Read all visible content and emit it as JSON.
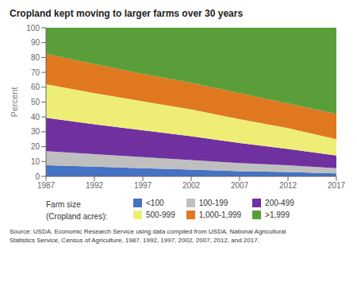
{
  "chart_data": {
    "type": "area",
    "title": "Cropland kept moving to larger farms over 30 years",
    "ylabel": "Percent",
    "x": [
      1987,
      1992,
      1997,
      2002,
      2007,
      2012,
      2017
    ],
    "xlim": [
      1987,
      2017
    ],
    "xticks": [
      1987,
      1992,
      1997,
      2002,
      2007,
      2012,
      2017
    ],
    "ylim": [
      0,
      100
    ],
    "yticks": [
      0,
      10,
      20,
      30,
      40,
      50,
      60,
      70,
      80,
      90,
      100
    ],
    "stacked": true,
    "grid": true,
    "legend": "bottom",
    "legend_title": "Farm size\n(Cropland acres):",
    "annotations": [
      "Source: USDA, Economic Research Service using data compiled from USDA, National Agricultural\nStatistics Service, Census of Agriculture, 1987, 1992, 1997, 2002, 2007, 2012, and 2017."
    ],
    "series": [
      {
        "name": "<100",
        "color": "#4472c4",
        "values": [
          7.5,
          6.5,
          5.5,
          4.5,
          3.5,
          3.0,
          2.0
        ]
      },
      {
        "name": "100-199",
        "color": "#bfbfbf",
        "values": [
          9.5,
          8.5,
          7.5,
          6.5,
          5.5,
          4.5,
          3.5
        ]
      },
      {
        "name": "200-499",
        "color": "#7030a0",
        "values": [
          22.5,
          20.0,
          18.0,
          16.0,
          13.5,
          11.0,
          8.5
        ]
      },
      {
        "name": "500-999",
        "color": "#eeee77",
        "values": [
          22.5,
          21.0,
          19.5,
          18.0,
          16.0,
          14.0,
          11.0
        ]
      },
      {
        "name": "1,000-1,999",
        "color": "#e07820",
        "values": [
          20.5,
          19.5,
          18.5,
          18.0,
          17.5,
          16.5,
          17.0
        ]
      },
      {
        "name": ">1,999",
        "color": "#5a9e3a",
        "values": [
          17.5,
          24.5,
          31.0,
          37.0,
          44.0,
          51.0,
          58.0
        ]
      }
    ]
  }
}
